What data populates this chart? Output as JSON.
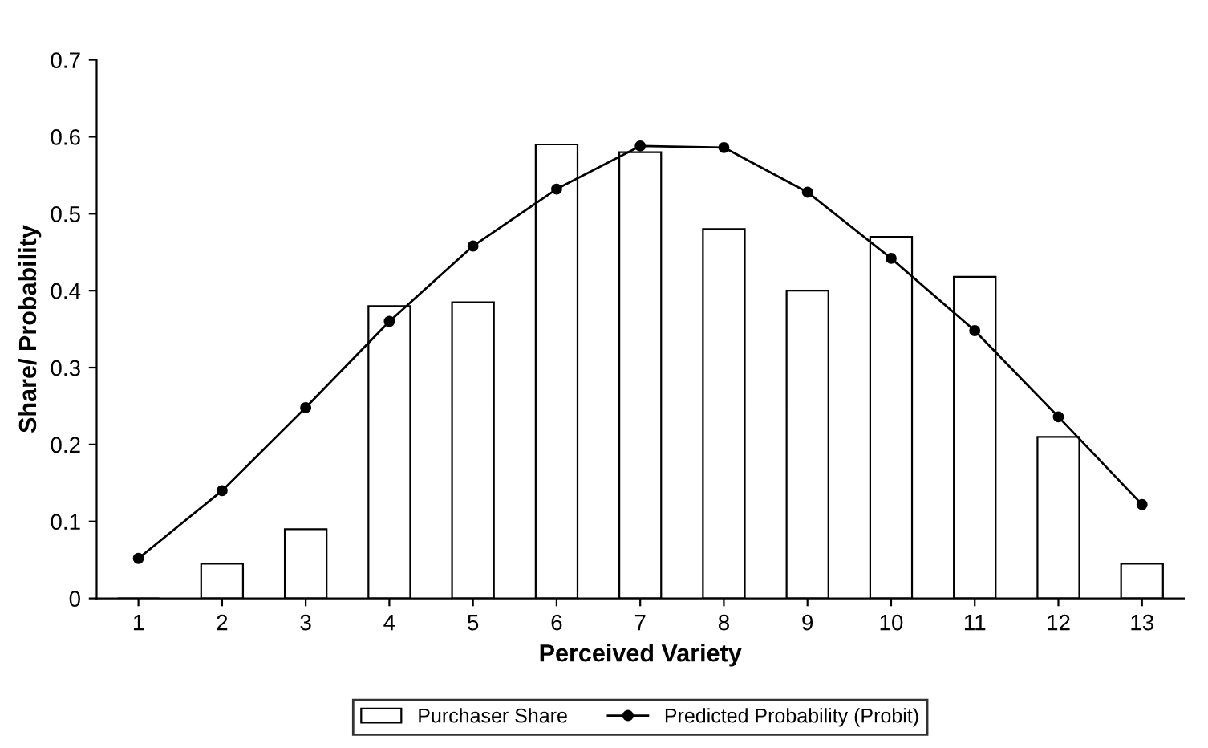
{
  "chart_data": {
    "type": "bar",
    "xlabel": "Perceived Variety",
    "ylabel": "Share/ Probability",
    "categories": [
      "1",
      "2",
      "3",
      "4",
      "5",
      "6",
      "7",
      "8",
      "9",
      "10",
      "11",
      "12",
      "13"
    ],
    "series": [
      {
        "name": "Purchaser Share",
        "color": "#ffffff",
        "values": [
          0,
          0.045,
          0.09,
          0.38,
          0.385,
          0.59,
          0.58,
          0.48,
          0.4,
          0.47,
          0.418,
          0.21,
          0.045
        ]
      },
      {
        "name": "Predicted Probability (Probit)",
        "type": "line",
        "color": "#000000",
        "marker": "circle",
        "values": [
          0.052,
          0.14,
          0.248,
          0.36,
          0.458,
          0.532,
          0.588,
          0.586,
          0.528,
          0.442,
          0.348,
          0.236,
          0.122
        ]
      }
    ],
    "ylim": [
      0,
      0.7
    ],
    "yticks": [
      0,
      0.1,
      0.2,
      0.3,
      0.4,
      0.5,
      0.6,
      0.7
    ],
    "grid": false,
    "legend": "bottom"
  }
}
